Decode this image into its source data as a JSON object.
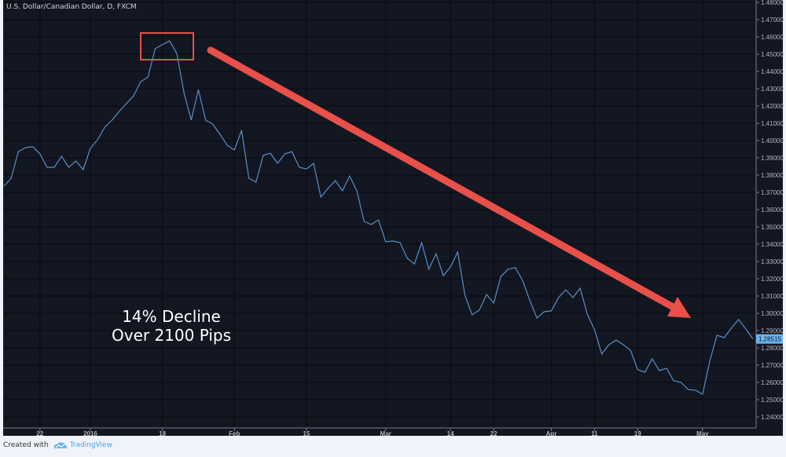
{
  "title": "U.S. Dollar/Canadian Dollar, D, FXCM",
  "annotation": {
    "line1": "14% Decline",
    "line2": "Over 2100 Pips"
  },
  "footer": {
    "created_with": "Created with",
    "brand": "TradingView"
  },
  "colors": {
    "background": "#131722",
    "line": "#5b8ec4",
    "annotation": "#e8504a",
    "price_label": "#6cb4f0"
  },
  "chart_data": {
    "type": "line",
    "title": "U.S. Dollar/Canadian Dollar, D, FXCM",
    "ylim": [
      1.235,
      1.48
    ],
    "yticks": [
      "1.48000",
      "1.47000",
      "1.46000",
      "1.45000",
      "1.44000",
      "1.43000",
      "1.42000",
      "1.41000",
      "1.40000",
      "1.39000",
      "1.38000",
      "1.37000",
      "1.36000",
      "1.35000",
      "1.34000",
      "1.33000",
      "1.32000",
      "1.31000",
      "1.30000",
      "1.29000",
      "1.28000",
      "1.27000",
      "1.26000",
      "1.25000",
      "1.24000"
    ],
    "xticks": [
      {
        "label": "22",
        "index": 5
      },
      {
        "label": "2016",
        "index": 12
      },
      {
        "label": "18",
        "index": 22
      },
      {
        "label": "Feb",
        "index": 32
      },
      {
        "label": "15",
        "index": 42
      },
      {
        "label": "Mar",
        "index": 53
      },
      {
        "label": "14",
        "index": 62
      },
      {
        "label": "22",
        "index": 68
      },
      {
        "label": "Apr",
        "index": 76
      },
      {
        "label": "11",
        "index": 82
      },
      {
        "label": "19",
        "index": 88
      },
      {
        "label": "May",
        "index": 97
      }
    ],
    "last_price": "1.28515",
    "grid": true,
    "values": [
      1.3736,
      1.3782,
      1.3936,
      1.3959,
      1.3964,
      1.3923,
      1.3845,
      1.3845,
      1.3909,
      1.3845,
      1.3882,
      1.3832,
      1.3955,
      1.4005,
      1.4077,
      1.4118,
      1.4168,
      1.4214,
      1.4259,
      1.4341,
      1.4368,
      1.4532,
      1.4555,
      1.4577,
      1.4505,
      1.4277,
      1.4118,
      1.4295,
      1.4118,
      1.4095,
      1.4036,
      1.3973,
      1.3945,
      1.4059,
      1.3782,
      1.3759,
      1.3914,
      1.3927,
      1.3868,
      1.3923,
      1.3936,
      1.3845,
      1.3836,
      1.3868,
      1.3673,
      1.3723,
      1.3768,
      1.3709,
      1.3795,
      1.3709,
      1.3532,
      1.3514,
      1.3541,
      1.3414,
      1.3418,
      1.3409,
      1.3318,
      1.3286,
      1.3409,
      1.3255,
      1.3345,
      1.3218,
      1.3268,
      1.3355,
      1.3105,
      1.2991,
      1.3018,
      1.3109,
      1.3059,
      1.3214,
      1.3255,
      1.3264,
      1.3191,
      1.3077,
      1.2973,
      1.3009,
      1.3014,
      1.3091,
      1.3136,
      1.3091,
      1.3145,
      1.2995,
      1.2905,
      1.2764,
      1.2818,
      1.2845,
      1.2818,
      1.2786,
      1.2673,
      1.2659,
      1.2736,
      1.2668,
      1.2682,
      1.2609,
      1.26,
      1.2559,
      1.2555,
      1.2532,
      1.2723,
      1.2873,
      1.2859,
      1.2914,
      1.2964,
      1.2909,
      1.2852
    ]
  }
}
